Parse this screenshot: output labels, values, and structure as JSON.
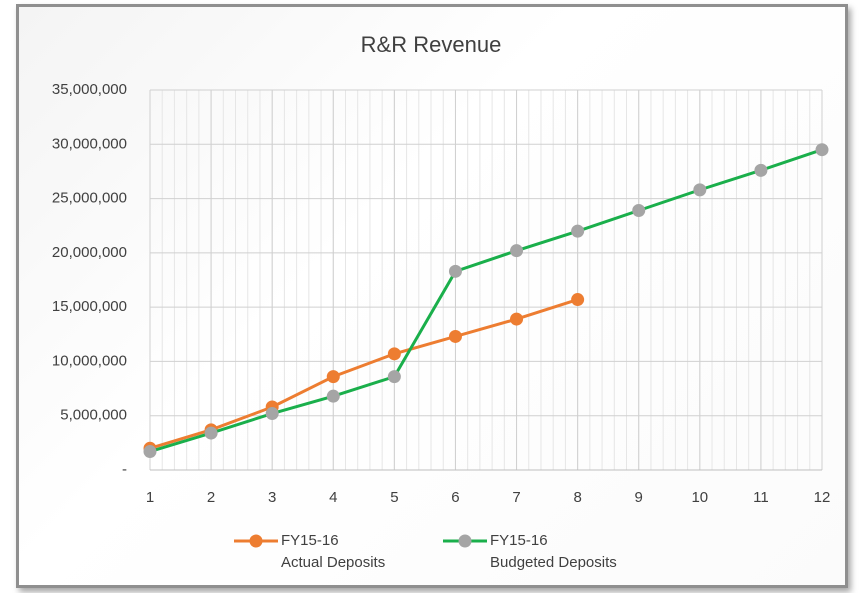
{
  "chart_data": {
    "type": "line",
    "title": "R&R Revenue",
    "x": [
      1,
      2,
      3,
      4,
      5,
      6,
      7,
      8,
      9,
      10,
      11,
      12
    ],
    "xlim": [
      1,
      12
    ],
    "xticks": [
      1,
      2,
      3,
      4,
      5,
      6,
      7,
      8,
      9,
      10,
      11,
      12
    ],
    "ylim": [
      0,
      35000000
    ],
    "yticks": [
      {
        "value": 0,
        "label": "-"
      },
      {
        "value": 5000000,
        "label": "5,000,000"
      },
      {
        "value": 10000000,
        "label": "10,000,000"
      },
      {
        "value": 15000000,
        "label": "15,000,000"
      },
      {
        "value": 20000000,
        "label": "20,000,000"
      },
      {
        "value": 25000000,
        "label": "25,000,000"
      },
      {
        "value": 30000000,
        "label": "30,000,000"
      },
      {
        "value": 35000000,
        "label": "35,000,000"
      }
    ],
    "grid": true,
    "legend": "bottom",
    "series": [
      {
        "name": "FY15-16\nActual  Deposits",
        "color": "#ed7d31",
        "marker_color": "#ed7d31",
        "values": [
          2000000,
          3700000,
          5800000,
          8600000,
          10700000,
          12300000,
          13900000,
          15700000,
          null,
          null,
          null,
          null
        ]
      },
      {
        "name": "FY15-16\nBudgeted Deposits",
        "color": "#1aaf4b",
        "marker_color": "#a5a5a5",
        "values": [
          1700000,
          3400000,
          5200000,
          6800000,
          8600000,
          18300000,
          20200000,
          22000000,
          23900000,
          25800000,
          27600000,
          29500000
        ]
      }
    ]
  }
}
